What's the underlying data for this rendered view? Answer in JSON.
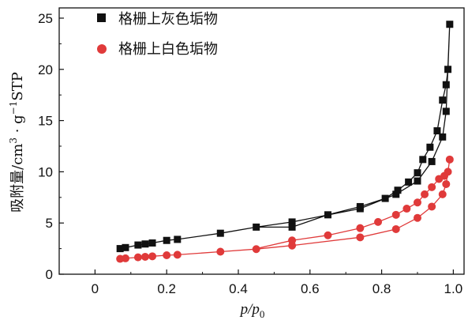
{
  "chart_data": {
    "type": "line",
    "title": "",
    "xlabel": {
      "main": "p/p",
      "sub": "0"
    },
    "ylabel": {
      "main": "吸附量/cm",
      "sup1": "3",
      "mid": " · g",
      "sup2": "−1",
      "end": "STP"
    },
    "xlim": [
      -0.1,
      1.03
    ],
    "ylim": [
      0,
      26
    ],
    "xticks": [
      0,
      0.2,
      0.4,
      0.6,
      0.8,
      1.0
    ],
    "xtick_labels": [
      "0",
      "0.2",
      "0.4",
      "0.6",
      "0.8",
      "1.0"
    ],
    "yticks": [
      0,
      5,
      10,
      15,
      20,
      25
    ],
    "ytick_labels": [
      "0",
      "5",
      "10",
      "15",
      "20",
      "25"
    ],
    "grid": false,
    "legend_position": "top-left",
    "series": [
      {
        "name": "格栅上灰色垢物",
        "color": "#111111",
        "marker": "square",
        "x": [
          0.07,
          0.085,
          0.12,
          0.14,
          0.16,
          0.2,
          0.23,
          0.35,
          0.45,
          0.55,
          0.74,
          0.84,
          0.9,
          0.94,
          0.97,
          0.98,
          0.99,
          0.985,
          0.98,
          0.97,
          0.955,
          0.935,
          0.915,
          0.9,
          0.875,
          0.845,
          0.81,
          0.74,
          0.65,
          0.55
        ],
        "y": [
          2.5,
          2.6,
          2.85,
          2.95,
          3.05,
          3.3,
          3.4,
          4.0,
          4.6,
          5.1,
          6.4,
          7.8,
          9.1,
          11.0,
          13.4,
          15.9,
          24.4,
          20.0,
          18.5,
          17.0,
          14.0,
          12.4,
          11.2,
          9.9,
          9.0,
          8.2,
          7.4,
          6.6,
          5.8,
          4.6
        ],
        "loop_close_x": 0.45,
        "loop_close_y": 4.6
      },
      {
        "name": "格栅上白色垢物",
        "color": "#e03a3a",
        "marker": "circle",
        "x": [
          0.07,
          0.085,
          0.12,
          0.14,
          0.16,
          0.2,
          0.23,
          0.35,
          0.45,
          0.55,
          0.74,
          0.84,
          0.9,
          0.94,
          0.97,
          0.98,
          0.99,
          0.985,
          0.975,
          0.96,
          0.94,
          0.92,
          0.9,
          0.87,
          0.84,
          0.79,
          0.74,
          0.65,
          0.55
        ],
        "y": [
          1.5,
          1.55,
          1.65,
          1.7,
          1.75,
          1.85,
          1.9,
          2.2,
          2.45,
          2.8,
          3.6,
          4.4,
          5.5,
          6.6,
          7.8,
          8.8,
          11.2,
          10.0,
          9.6,
          9.3,
          8.5,
          7.8,
          7.0,
          6.4,
          5.8,
          5.1,
          4.5,
          3.8,
          3.3
        ],
        "loop_close_x": 0.45,
        "loop_close_y": 2.5
      }
    ]
  }
}
